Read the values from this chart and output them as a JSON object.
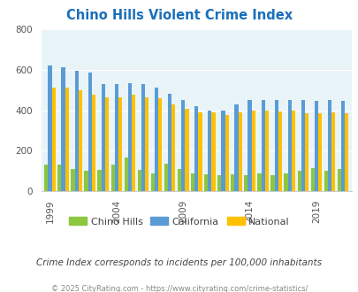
{
  "title": "Chino Hills Violent Crime Index",
  "years": [
    1999,
    2000,
    2001,
    2002,
    2003,
    2004,
    2005,
    2006,
    2007,
    2008,
    2009,
    2010,
    2011,
    2012,
    2013,
    2014,
    2015,
    2016,
    2017,
    2018,
    2019,
    2020,
    2021
  ],
  "chino_hills": [
    130,
    130,
    110,
    100,
    105,
    130,
    165,
    105,
    90,
    135,
    110,
    90,
    85,
    80,
    85,
    80,
    90,
    80,
    90,
    100,
    115,
    100,
    110
  ],
  "california": [
    620,
    610,
    595,
    585,
    530,
    530,
    535,
    530,
    510,
    480,
    450,
    420,
    400,
    400,
    430,
    450,
    450,
    450,
    450,
    450,
    445,
    450,
    445
  ],
  "national": [
    510,
    510,
    500,
    475,
    465,
    465,
    475,
    465,
    460,
    430,
    405,
    390,
    390,
    375,
    390,
    400,
    400,
    395,
    400,
    385,
    385,
    390,
    385
  ],
  "color_chino": "#8dc63f",
  "color_california": "#5b9bd5",
  "color_national": "#ffc000",
  "bg_color": "#e8f4f8",
  "title_color": "#1a6fba",
  "text_color": "#333333",
  "footer_color": "#888888",
  "subtitle_color": "#444444",
  "ylim": [
    0,
    800
  ],
  "yticks": [
    0,
    200,
    400,
    600,
    800
  ],
  "xtick_years": [
    1999,
    2004,
    2009,
    2014,
    2019
  ],
  "subtitle": "Crime Index corresponds to incidents per 100,000 inhabitants",
  "footer": "© 2025 CityRating.com - https://www.cityrating.com/crime-statistics/",
  "bar_width": 0.28
}
